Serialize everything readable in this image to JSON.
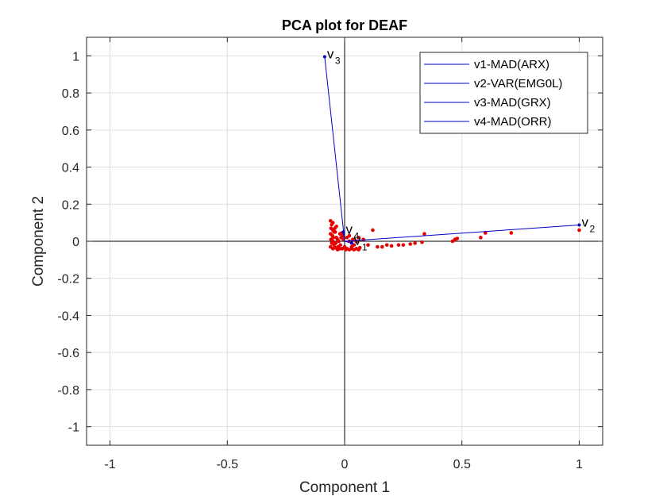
{
  "chart_data": {
    "type": "scatter",
    "title": "PCA plot for DEAF",
    "xlabel": "Component 1",
    "ylabel": "Component 2",
    "xlim": [
      -1.1,
      1.1
    ],
    "ylim": [
      -1.1,
      1.1
    ],
    "xticks": [
      -1,
      -0.5,
      0,
      0.5,
      1
    ],
    "yticks": [
      -1,
      -0.8,
      -0.6,
      -0.4,
      -0.2,
      0,
      0.2,
      0.4,
      0.6,
      0.8,
      1
    ],
    "grid": true,
    "legend_position": "top-right",
    "vector_color": "#0000c8",
    "point_color": "#e60000",
    "vectors": [
      {
        "name": "v1-MAD(ARX)",
        "label": "v",
        "subscript": "1",
        "x": 0.03,
        "y": -0.01
      },
      {
        "name": "v2-VAR(EMG0L)",
        "label": "v",
        "subscript": "2",
        "x": 1.0,
        "y": 0.088
      },
      {
        "name": "v3-MAD(GRX)",
        "label": "v",
        "subscript": "3",
        "x": -0.085,
        "y": 0.995
      },
      {
        "name": "v4-MAD(ORR)",
        "label": "v",
        "subscript": "4",
        "x": -0.005,
        "y": 0.05
      }
    ],
    "points": [
      [
        -0.06,
        0.11
      ],
      [
        -0.055,
        0.09
      ],
      [
        -0.05,
        0.1
      ],
      [
        -0.058,
        0.07
      ],
      [
        -0.05,
        0.06
      ],
      [
        -0.045,
        0.05
      ],
      [
        -0.06,
        0.04
      ],
      [
        -0.052,
        0.03
      ],
      [
        -0.048,
        0.02
      ],
      [
        -0.058,
        0.01
      ],
      [
        -0.05,
        0.0
      ],
      [
        -0.055,
        -0.01
      ],
      [
        -0.045,
        -0.02
      ],
      [
        -0.06,
        -0.03
      ],
      [
        -0.05,
        -0.04
      ],
      [
        -0.04,
        -0.035
      ],
      [
        -0.035,
        0.02
      ],
      [
        -0.03,
        0.01
      ],
      [
        -0.04,
        0.05
      ],
      [
        -0.042,
        0.07
      ],
      [
        -0.035,
        0.08
      ],
      [
        -0.038,
        -0.01
      ],
      [
        -0.028,
        -0.03
      ],
      [
        -0.025,
        0.0
      ],
      [
        -0.02,
        0.04
      ],
      [
        -0.015,
        0.02
      ],
      [
        -0.018,
        -0.02
      ],
      [
        -0.01,
        -0.04
      ],
      [
        -0.005,
        0.01
      ],
      [
        0.0,
        -0.03
      ],
      [
        -0.008,
        0.03
      ],
      [
        -0.02,
        -0.04
      ],
      [
        -0.03,
        -0.045
      ],
      [
        -0.012,
        0.045
      ],
      [
        0.005,
        -0.045
      ],
      [
        0.01,
        -0.04
      ],
      [
        0.02,
        -0.045
      ],
      [
        0.03,
        -0.04
      ],
      [
        0.04,
        -0.045
      ],
      [
        0.05,
        -0.04
      ],
      [
        0.06,
        -0.045
      ],
      [
        0.065,
        -0.035
      ],
      [
        0.02,
        0.0
      ],
      [
        0.035,
        0.01
      ],
      [
        0.05,
        0.0
      ],
      [
        0.06,
        0.02
      ],
      [
        0.08,
        0.01
      ],
      [
        0.02,
        0.03
      ],
      [
        0.01,
        0.02
      ],
      [
        0.04,
        -0.02
      ],
      [
        0.03,
        -0.03
      ],
      [
        0.1,
        -0.02
      ],
      [
        0.12,
        0.06
      ],
      [
        0.14,
        -0.03
      ],
      [
        0.16,
        -0.03
      ],
      [
        0.18,
        -0.02
      ],
      [
        0.2,
        -0.025
      ],
      [
        0.23,
        -0.02
      ],
      [
        0.25,
        -0.02
      ],
      [
        0.28,
        -0.015
      ],
      [
        0.3,
        -0.01
      ],
      [
        0.33,
        -0.005
      ],
      [
        0.34,
        0.04
      ],
      [
        0.46,
        0.0
      ],
      [
        0.47,
        0.01
      ],
      [
        0.48,
        0.015
      ],
      [
        0.58,
        0.02
      ],
      [
        0.6,
        0.045
      ],
      [
        0.71,
        0.045
      ],
      [
        1.0,
        0.06
      ]
    ]
  }
}
